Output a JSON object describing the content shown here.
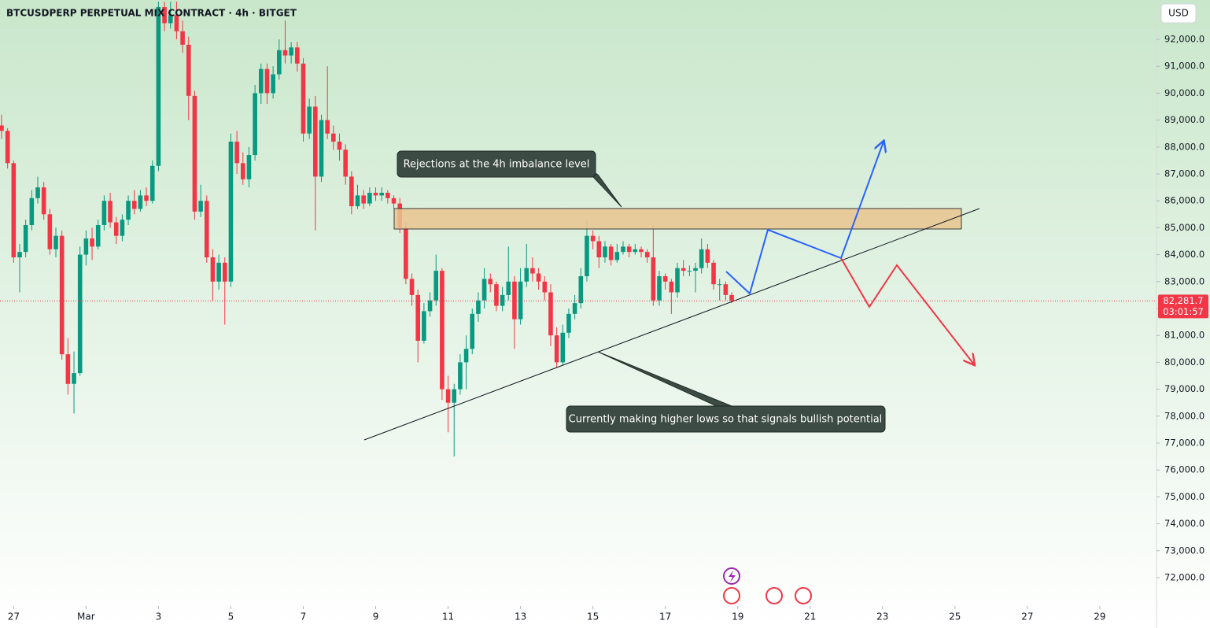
{
  "chart_data": {
    "type": "candlestick",
    "title": "BTCUSDPERP PERPETUAL MIX CONTRACT · 4h · BITGET",
    "currency": "USD",
    "up_color": "#089981",
    "down_color": "#f23645",
    "open": [
      88800,
      88600,
      87400,
      83900,
      84100,
      85100,
      86100,
      86500,
      85500,
      84200,
      84700,
      80300,
      79200,
      79600,
      84000,
      84600,
      84300,
      85100,
      86000,
      85200,
      84700,
      85300,
      86000,
      85700,
      86200,
      86000,
      87300,
      93200,
      92600,
      92900,
      92300,
      91800,
      89900,
      85600,
      86000,
      83900,
      83000,
      83700,
      83000,
      88200,
      87400,
      86800,
      87700,
      90000,
      90900,
      90000,
      90700,
      91600,
      91400,
      91700,
      91100,
      88500,
      89500,
      86900,
      89000,
      88500,
      88200,
      87900,
      86900,
      85800,
      86200,
      85900,
      86300,
      86200,
      86300,
      86100,
      85900,
      85000,
      83100,
      82500,
      80800,
      81900,
      82300,
      83400,
      79000,
      78500,
      79000,
      80000,
      80500,
      81800,
      82300,
      83100,
      82900,
      82100,
      82500,
      83000,
      81600,
      83000,
      83500,
      83300,
      83000,
      82600,
      81000,
      80000,
      81100,
      81800,
      82200,
      83200,
      84700,
      84500,
      83900,
      84300,
      83800,
      84100,
      84300,
      84100,
      84200,
      84100,
      83900,
      82300,
      83200,
      83000,
      82600,
      83500,
      83400,
      83400,
      83500,
      84200,
      83700,
      82900,
      82900,
      82500
    ],
    "high": [
      89200,
      88700,
      87500,
      84400,
      85300,
      86400,
      86900,
      86700,
      85700,
      85000,
      84900,
      80900,
      80400,
      84300,
      84900,
      85000,
      85300,
      86200,
      86300,
      85400,
      85500,
      86200,
      86400,
      86400,
      86500,
      87500,
      93400,
      93400,
      93400,
      93400,
      92700,
      92100,
      90100,
      86600,
      86200,
      84200,
      84000,
      83900,
      88500,
      88600,
      87800,
      88000,
      90300,
      91100,
      91100,
      91000,
      92000,
      92700,
      91900,
      91900,
      91300,
      89800,
      89900,
      89200,
      91000,
      88800,
      88500,
      88100,
      87100,
      86600,
      86400,
      86500,
      86500,
      86500,
      86400,
      86200,
      86100,
      85200,
      83300,
      82700,
      82200,
      82600,
      84000,
      83500,
      79500,
      79200,
      80300,
      81000,
      82000,
      82600,
      83500,
      83300,
      83000,
      82800,
      84300,
      83200,
      83500,
      84400,
      83900,
      83500,
      83200,
      82900,
      81300,
      81400,
      82000,
      82500,
      83500,
      85300,
      84900,
      84700,
      84500,
      84400,
      84400,
      84500,
      84400,
      84400,
      84300,
      84200,
      85100,
      83400,
      83300,
      83100,
      83700,
      83800,
      83600,
      83700,
      84600,
      84400,
      83800,
      83100,
      83000,
      82600
    ],
    "low": [
      88300,
      87200,
      83700,
      82600,
      83900,
      84900,
      85900,
      85300,
      84000,
      83900,
      80100,
      78800,
      78100,
      79500,
      83600,
      83800,
      84200,
      84900,
      85000,
      84400,
      84500,
      85100,
      85500,
      85600,
      85800,
      85900,
      87100,
      92300,
      92400,
      92000,
      91500,
      89000,
      85300,
      85400,
      83700,
      82300,
      82700,
      81400,
      82800,
      87000,
      86600,
      86500,
      87500,
      89600,
      89600,
      89800,
      90500,
      91100,
      91100,
      90800,
      88200,
      88300,
      84900,
      86700,
      88300,
      87900,
      87500,
      86600,
      85500,
      85700,
      85700,
      85800,
      86000,
      86000,
      85900,
      85700,
      84800,
      82900,
      82100,
      80000,
      80700,
      81700,
      82100,
      78600,
      77400,
      76500,
      78800,
      79000,
      80300,
      81500,
      82000,
      82600,
      81900,
      81900,
      82300,
      80500,
      81400,
      82800,
      83000,
      82700,
      82300,
      80600,
      79800,
      79900,
      80900,
      81600,
      82000,
      83000,
      84200,
      83500,
      83700,
      83600,
      83700,
      84000,
      83900,
      84000,
      83900,
      83700,
      82100,
      82100,
      82700,
      81800,
      82400,
      83200,
      83200,
      82600,
      83300,
      83500,
      82700,
      82300,
      82300,
      82200
    ],
    "close": [
      88600,
      87400,
      83900,
      84100,
      85100,
      86100,
      86500,
      85500,
      84200,
      84700,
      80300,
      79200,
      79600,
      84000,
      84600,
      84300,
      85100,
      86000,
      85200,
      84700,
      85300,
      86000,
      85700,
      86200,
      86000,
      87300,
      93200,
      92600,
      92900,
      92300,
      91800,
      89900,
      85600,
      86000,
      83900,
      83000,
      83700,
      83000,
      88200,
      87400,
      86800,
      87700,
      90000,
      90900,
      90000,
      90700,
      91600,
      91400,
      91700,
      91100,
      88500,
      89500,
      86900,
      89000,
      88500,
      88200,
      87900,
      86900,
      85800,
      86200,
      85900,
      86300,
      86200,
      86300,
      86100,
      85900,
      85000,
      83100,
      82500,
      80800,
      81900,
      82300,
      83400,
      79000,
      78500,
      79000,
      80000,
      80500,
      81800,
      82300,
      83100,
      82900,
      82100,
      82500,
      83000,
      81600,
      83000,
      83500,
      83300,
      83000,
      82600,
      81000,
      80000,
      81100,
      81800,
      82200,
      83200,
      84700,
      84500,
      83900,
      84300,
      83800,
      84100,
      84300,
      84100,
      84200,
      84100,
      83900,
      82300,
      83200,
      83000,
      82600,
      83500,
      83400,
      83400,
      83500,
      84200,
      83700,
      82900,
      82900,
      82500,
      82281.7
    ],
    "xlim": [
      -0.26,
      191.4
    ],
    "xticks": [
      {
        "value": 2,
        "label": "27"
      },
      {
        "value": 14,
        "label": "Mar"
      },
      {
        "value": 26,
        "label": "3"
      },
      {
        "value": 38,
        "label": "5"
      },
      {
        "value": 50,
        "label": "7"
      },
      {
        "value": 62,
        "label": "9"
      },
      {
        "value": 74,
        "label": "11"
      },
      {
        "value": 86,
        "label": "13"
      },
      {
        "value": 98,
        "label": "15"
      },
      {
        "value": 110,
        "label": "17"
      },
      {
        "value": 122,
        "label": "19"
      },
      {
        "value": 134,
        "label": "21"
      },
      {
        "value": 146,
        "label": "23"
      },
      {
        "value": 158,
        "label": "25"
      },
      {
        "value": 170,
        "label": "27"
      },
      {
        "value": 182,
        "label": "29"
      }
    ],
    "ylim": [
      70947,
      93462
    ],
    "yticks": [
      {
        "value": 72000,
        "label": "72,000.0"
      },
      {
        "value": 73000,
        "label": "73,000.0"
      },
      {
        "value": 74000,
        "label": "74,000.0"
      },
      {
        "value": 75000,
        "label": "75,000.0"
      },
      {
        "value": 76000,
        "label": "76,000.0"
      },
      {
        "value": 77000,
        "label": "77,000.0"
      },
      {
        "value": 78000,
        "label": "78,000.0"
      },
      {
        "value": 79000,
        "label": "79,000.0"
      },
      {
        "value": 80000,
        "label": "80,000.0"
      },
      {
        "value": 81000,
        "label": "81,000.0"
      },
      {
        "value": 82000,
        "label": "82,000.0"
      },
      {
        "value": 83000,
        "label": "83,000.0"
      },
      {
        "value": 84000,
        "label": "84,000.0"
      },
      {
        "value": 85000,
        "label": "85,000.0"
      },
      {
        "value": 86000,
        "label": "86,000.0"
      },
      {
        "value": 87000,
        "label": "87,000.0"
      },
      {
        "value": 88000,
        "label": "88,000.0"
      },
      {
        "value": 89000,
        "label": "89,000.0"
      },
      {
        "value": 90000,
        "label": "90,000.0"
      },
      {
        "value": 91000,
        "label": "91,000.0"
      },
      {
        "value": 92000,
        "label": "92,000.0"
      }
    ],
    "last_price": {
      "value": 82281.7,
      "label": "82,281.7"
    },
    "countdown": "03:01:57",
    "annotations": [
      "Rejections at the 4h imbalance level",
      "Currently making higher lows so that signals bullish potential"
    ]
  }
}
